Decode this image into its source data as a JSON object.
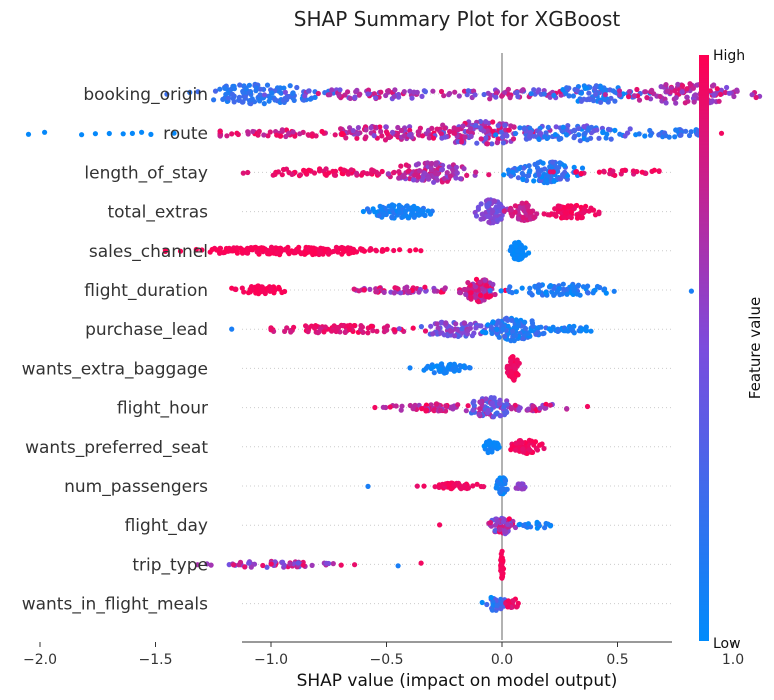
{
  "chart_data": {
    "type": "scatter",
    "subtype": "shap-beeswarm",
    "title": "SHAP Summary Plot for XGBoost",
    "xlabel": "SHAP value (impact on model output)",
    "xlim": [
      -2.3,
      1.5
    ],
    "xticks": [
      {
        "value": -2.0,
        "label": "−2.0"
      },
      {
        "value": -1.5,
        "label": "−1.5"
      },
      {
        "value": -1.0,
        "label": "−1.0"
      },
      {
        "value": -0.5,
        "label": "−0.5"
      },
      {
        "value": 0.0,
        "label": "0.0"
      },
      {
        "value": 0.5,
        "label": "0.5"
      },
      {
        "value": 1.0,
        "label": "1.0"
      }
    ],
    "colorbar": {
      "label": "Feature value",
      "high": "High",
      "low": "Low",
      "color_low": "#008bfb",
      "color_high": "#ff0052"
    },
    "features": [
      {
        "name": "booking_origin",
        "clusters": [
          {
            "center": -1.05,
            "spread": 0.22,
            "width": 10,
            "n": 130,
            "colors": [
              0.1,
              0.3
            ]
          },
          {
            "center": -0.55,
            "spread": 0.3,
            "width": 5,
            "n": 70,
            "colors": [
              0.4,
              0.9
            ]
          },
          {
            "center": 0.0,
            "spread": 0.3,
            "width": 5,
            "n": 60,
            "colors": [
              0.3,
              0.9
            ]
          },
          {
            "center": 0.4,
            "spread": 0.15,
            "width": 9,
            "n": 80,
            "colors": [
              0.0,
              0.4
            ]
          },
          {
            "center": 0.8,
            "spread": 0.2,
            "width": 11,
            "n": 130,
            "colors": [
              0.5,
              0.95
            ]
          }
        ],
        "range": [
          -1.62,
          1.28
        ]
      },
      {
        "name": "route",
        "clusters": [
          {
            "center": -1.0,
            "spread": 0.3,
            "width": 4,
            "n": 60,
            "colors": [
              0.7,
              1.0
            ]
          },
          {
            "center": -0.5,
            "spread": 0.25,
            "width": 7,
            "n": 80,
            "colors": [
              0.5,
              1.0
            ]
          },
          {
            "center": -0.1,
            "spread": 0.2,
            "width": 12,
            "n": 150,
            "colors": [
              0.3,
              1.0
            ]
          },
          {
            "center": 0.3,
            "spread": 0.25,
            "width": 8,
            "n": 90,
            "colors": [
              0.0,
              0.5
            ]
          },
          {
            "center": 0.75,
            "spread": 0.2,
            "width": 4,
            "n": 40,
            "colors": [
              0.0,
              0.3
            ]
          }
        ],
        "outliers": [
          -2.05,
          -1.98,
          -1.82,
          -1.76,
          -1.7,
          -1.64,
          -1.6,
          -1.56,
          -1.52,
          -1.42,
          0.95
        ],
        "range": [
          -1.22,
          0.85
        ]
      },
      {
        "name": "length_of_stay",
        "clusters": [
          {
            "center": -0.75,
            "spread": 0.3,
            "width": 4,
            "n": 70,
            "colors": [
              0.85,
              1.0
            ]
          },
          {
            "center": -0.3,
            "spread": 0.15,
            "width": 10,
            "n": 110,
            "colors": [
              0.5,
              0.9
            ]
          },
          {
            "center": 0.2,
            "spread": 0.12,
            "width": 11,
            "n": 110,
            "colors": [
              0.0,
              0.35
            ]
          },
          {
            "center": 0.5,
            "spread": 0.2,
            "width": 3,
            "n": 30,
            "colors": [
              0.8,
              1.0
            ]
          }
        ],
        "range": [
          -1.12,
          0.68
        ]
      },
      {
        "name": "total_extras",
        "clusters": [
          {
            "center": -0.45,
            "spread": 0.12,
            "width": 7,
            "n": 80,
            "colors": [
              0.0,
              0.2
            ]
          },
          {
            "center": -0.05,
            "spread": 0.05,
            "width": 12,
            "n": 70,
            "colors": [
              0.4,
              0.6
            ]
          },
          {
            "center": 0.1,
            "spread": 0.05,
            "width": 9,
            "n": 60,
            "colors": [
              0.7,
              0.9
            ]
          },
          {
            "center": 0.3,
            "spread": 0.1,
            "width": 7,
            "n": 70,
            "colors": [
              0.9,
              1.0
            ]
          }
        ],
        "range": [
          -0.6,
          0.42
        ]
      },
      {
        "name": "sales_channel",
        "clusters": [
          {
            "center": -0.9,
            "spread": 0.35,
            "width": 4,
            "n": 200,
            "colors": [
              0.95,
              1.0
            ]
          },
          {
            "center": 0.07,
            "spread": 0.03,
            "width": 9,
            "n": 80,
            "colors": [
              0.0,
              0.05
            ]
          }
        ],
        "range": [
          -1.47,
          0.18
        ]
      },
      {
        "name": "flight_duration",
        "clusters": [
          {
            "center": -1.05,
            "spread": 0.1,
            "width": 4,
            "n": 50,
            "colors": [
              0.95,
              1.0
            ]
          },
          {
            "center": -0.4,
            "spread": 0.25,
            "width": 3,
            "n": 60,
            "colors": [
              0.5,
              1.0
            ]
          },
          {
            "center": -0.1,
            "spread": 0.05,
            "width": 12,
            "n": 80,
            "colors": [
              0.6,
              1.0
            ]
          },
          {
            "center": 0.25,
            "spread": 0.2,
            "width": 6,
            "n": 80,
            "colors": [
              0.0,
              0.25
            ]
          }
        ],
        "outliers": [
          0.82,
          0.87
        ],
        "range": [
          -1.2,
          0.62
        ]
      },
      {
        "name": "purchase_lead",
        "clusters": [
          {
            "center": -0.7,
            "spread": 0.3,
            "width": 4,
            "n": 80,
            "colors": [
              0.8,
              1.0
            ]
          },
          {
            "center": -0.2,
            "spread": 0.12,
            "width": 8,
            "n": 80,
            "colors": [
              0.3,
              0.7
            ]
          },
          {
            "center": 0.05,
            "spread": 0.1,
            "width": 12,
            "n": 110,
            "colors": [
              0.0,
              0.3
            ]
          },
          {
            "center": 0.3,
            "spread": 0.08,
            "width": 4,
            "n": 30,
            "colors": [
              0.0,
              0.2
            ]
          }
        ],
        "outliers": [
          -1.17
        ],
        "range": [
          -1.0,
          0.4
        ]
      },
      {
        "name": "wants_extra_baggage",
        "clusters": [
          {
            "center": -0.25,
            "spread": 0.08,
            "width": 5,
            "n": 50,
            "colors": [
              0.0,
              0.15
            ]
          },
          {
            "center": 0.05,
            "spread": 0.02,
            "width": 12,
            "n": 60,
            "colors": [
              0.9,
              1.0
            ]
          }
        ],
        "range": [
          -0.4,
          0.12
        ]
      },
      {
        "name": "flight_hour",
        "clusters": [
          {
            "center": -0.3,
            "spread": 0.15,
            "width": 4,
            "n": 60,
            "colors": [
              0.6,
              1.0
            ]
          },
          {
            "center": -0.05,
            "spread": 0.08,
            "width": 10,
            "n": 70,
            "colors": [
              0.2,
              0.8
            ]
          },
          {
            "center": 0.15,
            "spread": 0.1,
            "width": 4,
            "n": 30,
            "colors": [
              0.5,
              1.0
            ]
          }
        ],
        "outliers": [
          -0.55,
          0.37
        ],
        "range": [
          -0.52,
          0.28
        ]
      },
      {
        "name": "wants_preferred_seat",
        "clusters": [
          {
            "center": -0.05,
            "spread": 0.03,
            "width": 7,
            "n": 30,
            "colors": [
              0.0,
              0.1
            ]
          },
          {
            "center": 0.1,
            "spread": 0.06,
            "width": 7,
            "n": 50,
            "colors": [
              0.9,
              1.0
            ]
          }
        ],
        "range": [
          -0.1,
          0.22
        ]
      },
      {
        "name": "num_passengers",
        "clusters": [
          {
            "center": -0.2,
            "spread": 0.1,
            "width": 3,
            "n": 50,
            "colors": [
              0.9,
              1.0
            ]
          },
          {
            "center": 0.0,
            "spread": 0.02,
            "width": 9,
            "n": 40,
            "colors": [
              0.0,
              0.2
            ]
          },
          {
            "center": 0.08,
            "spread": 0.03,
            "width": 3,
            "n": 15,
            "colors": [
              0.5,
              0.7
            ]
          }
        ],
        "outliers": [
          -0.58
        ],
        "range": [
          -0.47,
          0.13
        ]
      },
      {
        "name": "flight_day",
        "clusters": [
          {
            "center": 0.0,
            "spread": 0.04,
            "width": 9,
            "n": 60,
            "colors": [
              0.3,
              1.0
            ]
          },
          {
            "center": 0.15,
            "spread": 0.06,
            "width": 3,
            "n": 20,
            "colors": [
              0.0,
              0.2
            ]
          }
        ],
        "outliers": [
          -0.27
        ],
        "range": [
          -0.2,
          0.25
        ]
      },
      {
        "name": "trip_type",
        "clusters": [
          {
            "center": -1.0,
            "spread": 0.2,
            "width": 3,
            "n": 60,
            "colors": [
              0.4,
              0.95
            ]
          },
          {
            "center": 0.0,
            "spread": 0.005,
            "width": 14,
            "n": 40,
            "colors": [
              0.95,
              1.0
            ]
          }
        ],
        "outliers": [
          -0.45,
          -0.35
        ],
        "range": [
          -1.33,
          0.02
        ]
      },
      {
        "name": "wants_in_flight_meals",
        "clusters": [
          {
            "center": -0.03,
            "spread": 0.04,
            "width": 7,
            "n": 40,
            "colors": [
              0.0,
              0.4
            ]
          },
          {
            "center": 0.05,
            "spread": 0.03,
            "width": 5,
            "n": 20,
            "colors": [
              0.8,
              1.0
            ]
          }
        ],
        "range": [
          -0.16,
          0.11
        ]
      }
    ]
  }
}
